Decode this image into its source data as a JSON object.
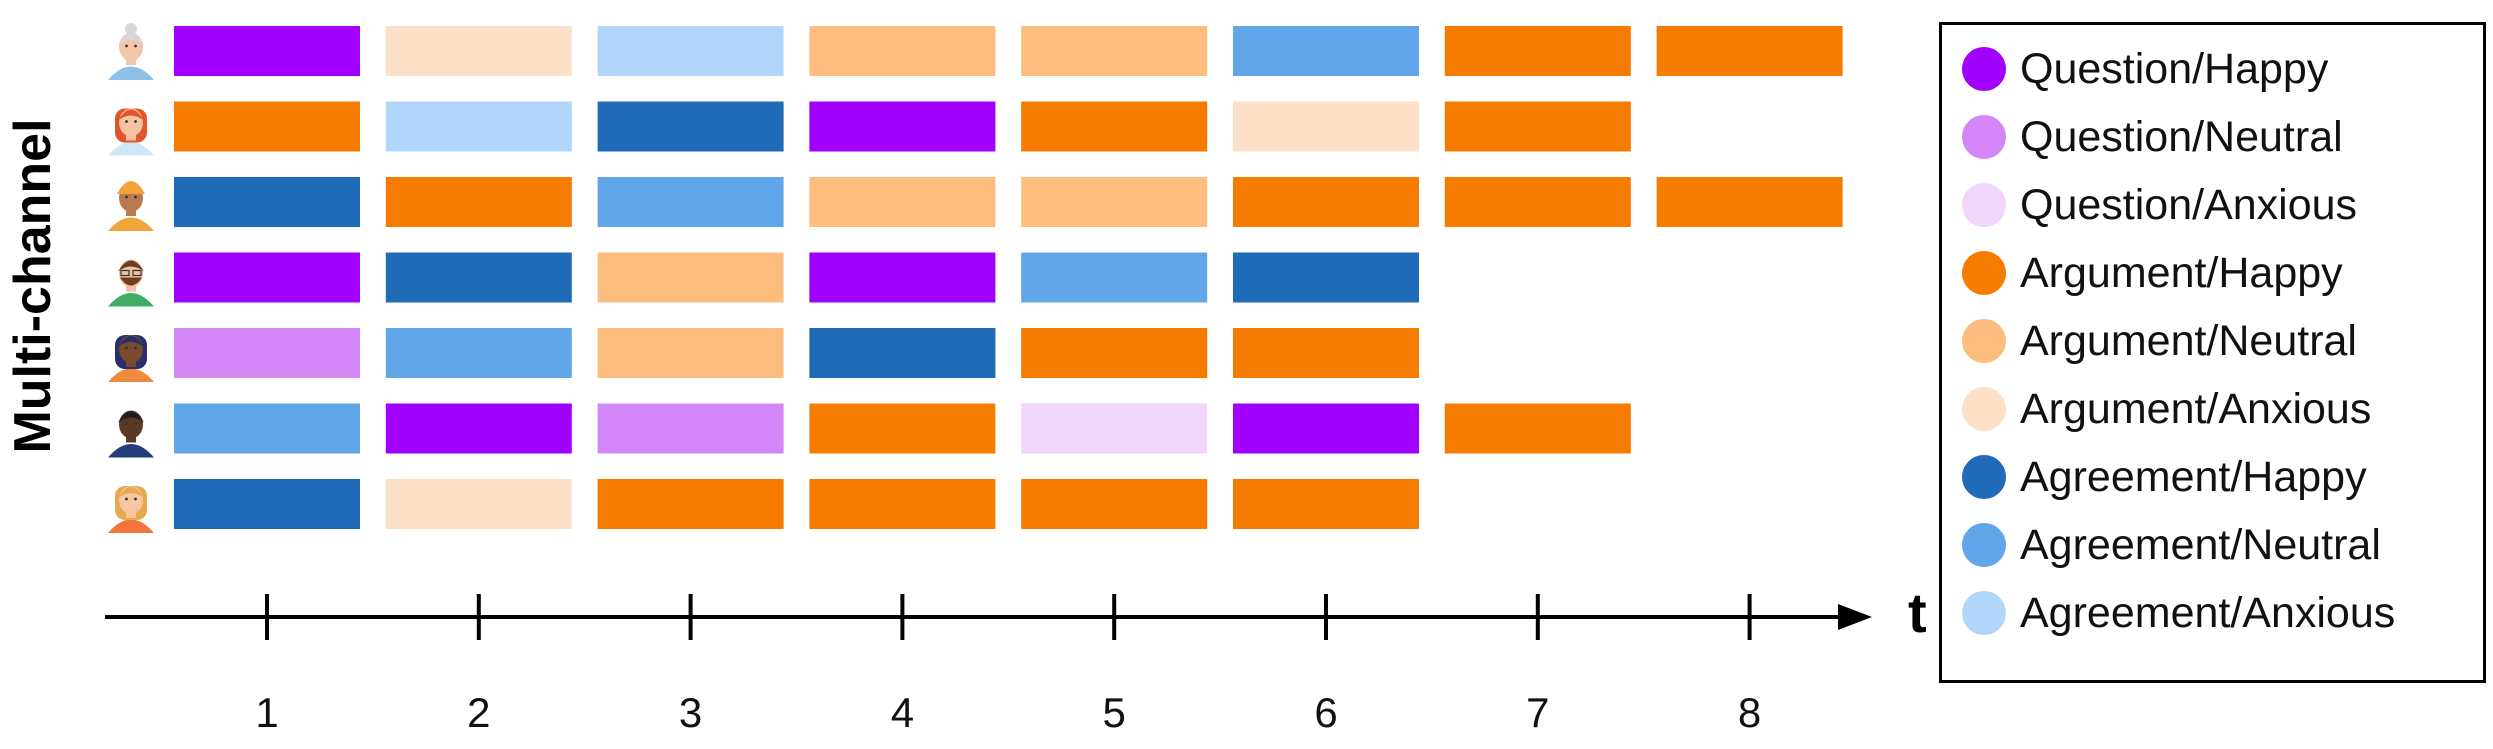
{
  "side_title": "Multi-channel",
  "axis_label": "t",
  "time_ticks": [
    "1",
    "2",
    "3",
    "4",
    "5",
    "6",
    "7",
    "8"
  ],
  "categories": [
    {
      "label": "Question/Happy",
      "color": "#a100ff"
    },
    {
      "label": "Question/Neutral",
      "color": "#d487f7"
    },
    {
      "label": "Question/Anxious",
      "color": "#f0d6fb"
    },
    {
      "label": "Argument/Happy",
      "color": "#f57c00"
    },
    {
      "label": "Argument/Neutral",
      "color": "#fdbd7e"
    },
    {
      "label": "Argument/Anxious",
      "color": "#fde0c8"
    },
    {
      "label": "Agreement/Happy",
      "color": "#1f6bb7"
    },
    {
      "label": "Agreement/Neutral",
      "color": "#62a6ea"
    },
    {
      "label": "Agreement/Anxious",
      "color": "#b0d7fb"
    }
  ],
  "participants": [
    {
      "avatar": "avatar-elderly-gray-hair",
      "sequence": [
        "Question/Happy",
        "Argument/Anxious",
        "Agreement/Anxious",
        "Argument/Neutral",
        "Argument/Neutral",
        "Agreement/Neutral",
        "Argument/Happy",
        "Argument/Happy"
      ]
    },
    {
      "avatar": "avatar-red-hair",
      "sequence": [
        "Argument/Happy",
        "Agreement/Anxious",
        "Agreement/Happy",
        "Question/Happy",
        "Argument/Happy",
        "Argument/Anxious",
        "Argument/Happy"
      ]
    },
    {
      "avatar": "avatar-turban",
      "sequence": [
        "Agreement/Happy",
        "Argument/Happy",
        "Agreement/Neutral",
        "Argument/Neutral",
        "Argument/Neutral",
        "Argument/Happy",
        "Argument/Happy",
        "Argument/Happy"
      ]
    },
    {
      "avatar": "avatar-beard-glasses",
      "sequence": [
        "Question/Happy",
        "Agreement/Happy",
        "Argument/Neutral",
        "Question/Happy",
        "Agreement/Neutral",
        "Agreement/Happy"
      ]
    },
    {
      "avatar": "avatar-braids",
      "sequence": [
        "Question/Neutral",
        "Agreement/Neutral",
        "Argument/Neutral",
        "Agreement/Happy",
        "Argument/Happy",
        "Argument/Happy"
      ]
    },
    {
      "avatar": "avatar-dark-skin-suit",
      "sequence": [
        "Agreement/Neutral",
        "Question/Happy",
        "Question/Neutral",
        "Argument/Happy",
        "Question/Anxious",
        "Question/Happy",
        "Argument/Happy"
      ]
    },
    {
      "avatar": "avatar-blonde-hair",
      "sequence": [
        "Agreement/Happy",
        "Argument/Anxious",
        "Argument/Happy",
        "Argument/Happy",
        "Argument/Happy",
        "Argument/Happy"
      ]
    }
  ]
}
